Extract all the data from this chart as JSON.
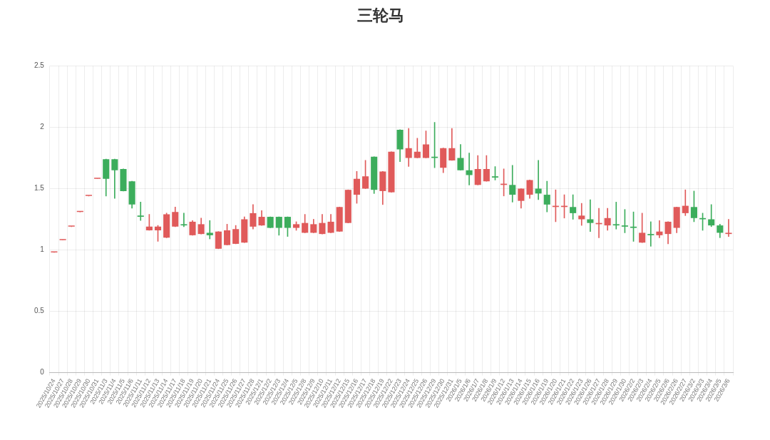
{
  "chart_data": {
    "type": "candlestick",
    "title": "三轮马",
    "categories": [
      "2025/10/24",
      "2025/10/27",
      "2025/10/28",
      "2025/10/29",
      "2025/10/30",
      "2025/10/31",
      "2025/11/3",
      "2025/11/4",
      "2025/11/5",
      "2025/11/6",
      "2025/11/11",
      "2025/11/12",
      "2025/11/13",
      "2025/11/14",
      "2025/11/17",
      "2025/11/18",
      "2025/11/19",
      "2025/11/20",
      "2025/11/21",
      "2025/11/24",
      "2025/11/25",
      "2025/11/26",
      "2025/11/27",
      "2025/11/28",
      "2025/12/1",
      "2025/12/2",
      "2025/12/3",
      "2025/12/4",
      "2025/12/5",
      "2025/12/8",
      "2025/12/9",
      "2025/12/10",
      "2025/12/11",
      "2025/12/12",
      "2025/12/15",
      "2025/12/16",
      "2025/12/17",
      "2025/12/18",
      "2025/12/19",
      "2025/12/22",
      "2025/12/23",
      "2025/12/24",
      "2025/12/25",
      "2025/12/26",
      "2025/12/29",
      "2025/12/30",
      "2025/12/31",
      "2026/1/5",
      "2026/1/6",
      "2026/1/7",
      "2026/1/8",
      "2026/1/9",
      "2026/1/12",
      "2026/1/13",
      "2026/1/14",
      "2026/1/15",
      "2026/1/16",
      "2026/1/19",
      "2026/1/20",
      "2026/1/21",
      "2026/1/22",
      "2026/1/23",
      "2026/1/26",
      "2026/1/27",
      "2026/1/28",
      "2026/1/29",
      "2026/1/30",
      "2026/2/2",
      "2026/2/3",
      "2026/2/4",
      "2026/2/5",
      "2026/2/6",
      "2026/2/26",
      "2026/2/27",
      "2026/3/2",
      "2026/3/3",
      "2026/3/4",
      "2026/3/5",
      "2026/3/6"
    ],
    "ohlc": [
      [
        0.98,
        0.98,
        0.98,
        0.98
      ],
      [
        1.08,
        1.08,
        1.08,
        1.08
      ],
      [
        1.19,
        1.19,
        1.19,
        1.19
      ],
      [
        1.31,
        1.31,
        1.31,
        1.31
      ],
      [
        1.44,
        1.44,
        1.44,
        1.44
      ],
      [
        1.58,
        1.58,
        1.58,
        1.58
      ],
      [
        1.74,
        1.74,
        1.44,
        1.58
      ],
      [
        1.74,
        1.74,
        1.42,
        1.65
      ],
      [
        1.66,
        1.66,
        1.48,
        1.48
      ],
      [
        1.56,
        1.56,
        1.34,
        1.37
      ],
      [
        1.28,
        1.39,
        1.24,
        1.27
      ],
      [
        1.16,
        1.29,
        1.16,
        1.19
      ],
      [
        1.16,
        1.2,
        1.07,
        1.19
      ],
      [
        1.1,
        1.3,
        1.1,
        1.29
      ],
      [
        1.19,
        1.35,
        1.19,
        1.31
      ],
      [
        1.21,
        1.3,
        1.19,
        1.2
      ],
      [
        1.12,
        1.24,
        1.12,
        1.23
      ],
      [
        1.13,
        1.26,
        1.13,
        1.21
      ],
      [
        1.14,
        1.24,
        1.09,
        1.12
      ],
      [
        1.01,
        1.15,
        1.01,
        1.15
      ],
      [
        1.04,
        1.21,
        1.04,
        1.16
      ],
      [
        1.05,
        1.2,
        1.05,
        1.17
      ],
      [
        1.06,
        1.27,
        1.06,
        1.25
      ],
      [
        1.19,
        1.37,
        1.17,
        1.3
      ],
      [
        1.2,
        1.32,
        1.2,
        1.27
      ],
      [
        1.27,
        1.27,
        1.18,
        1.18
      ],
      [
        1.27,
        1.27,
        1.12,
        1.18
      ],
      [
        1.27,
        1.27,
        1.11,
        1.18
      ],
      [
        1.18,
        1.23,
        1.16,
        1.21
      ],
      [
        1.14,
        1.29,
        1.14,
        1.22
      ],
      [
        1.14,
        1.25,
        1.14,
        1.21
      ],
      [
        1.13,
        1.29,
        1.13,
        1.22
      ],
      [
        1.14,
        1.29,
        1.14,
        1.23
      ],
      [
        1.15,
        1.35,
        1.15,
        1.35
      ],
      [
        1.22,
        1.49,
        1.22,
        1.49
      ],
      [
        1.45,
        1.64,
        1.38,
        1.58
      ],
      [
        1.5,
        1.73,
        1.5,
        1.6
      ],
      [
        1.76,
        1.76,
        1.46,
        1.49
      ],
      [
        1.48,
        1.64,
        1.37,
        1.64
      ],
      [
        1.47,
        1.8,
        1.47,
        1.8
      ],
      [
        1.98,
        1.98,
        1.72,
        1.82
      ],
      [
        1.75,
        1.99,
        1.68,
        1.83
      ],
      [
        1.75,
        1.91,
        1.75,
        1.8
      ],
      [
        1.75,
        1.97,
        1.75,
        1.86
      ],
      [
        1.76,
        2.04,
        1.67,
        1.75
      ],
      [
        1.67,
        1.83,
        1.63,
        1.83
      ],
      [
        1.73,
        1.99,
        1.73,
        1.83
      ],
      [
        1.75,
        1.86,
        1.65,
        1.65
      ],
      [
        1.65,
        1.79,
        1.53,
        1.61
      ],
      [
        1.53,
        1.77,
        1.53,
        1.66
      ],
      [
        1.56,
        1.77,
        1.56,
        1.66
      ],
      [
        1.6,
        1.68,
        1.57,
        1.59
      ],
      [
        1.53,
        1.66,
        1.44,
        1.54
      ],
      [
        1.53,
        1.69,
        1.39,
        1.45
      ],
      [
        1.4,
        1.5,
        1.34,
        1.5
      ],
      [
        1.45,
        1.57,
        1.42,
        1.57
      ],
      [
        1.5,
        1.73,
        1.41,
        1.46
      ],
      [
        1.45,
        1.56,
        1.31,
        1.37
      ],
      [
        1.35,
        1.49,
        1.23,
        1.36
      ],
      [
        1.35,
        1.45,
        1.26,
        1.36
      ],
      [
        1.35,
        1.45,
        1.25,
        1.3
      ],
      [
        1.25,
        1.38,
        1.2,
        1.28
      ],
      [
        1.25,
        1.41,
        1.15,
        1.22
      ],
      [
        1.21,
        1.34,
        1.1,
        1.22
      ],
      [
        1.2,
        1.34,
        1.16,
        1.26
      ],
      [
        1.21,
        1.39,
        1.17,
        1.2
      ],
      [
        1.2,
        1.33,
        1.14,
        1.19
      ],
      [
        1.19,
        1.31,
        1.07,
        1.18
      ],
      [
        1.06,
        1.3,
        1.06,
        1.14
      ],
      [
        1.13,
        1.23,
        1.03,
        1.12
      ],
      [
        1.12,
        1.24,
        1.1,
        1.15
      ],
      [
        1.13,
        1.23,
        1.05,
        1.23
      ],
      [
        1.18,
        1.35,
        1.14,
        1.35
      ],
      [
        1.3,
        1.49,
        1.28,
        1.36
      ],
      [
        1.35,
        1.48,
        1.23,
        1.26
      ],
      [
        1.26,
        1.3,
        1.16,
        1.25
      ],
      [
        1.25,
        1.37,
        1.19,
        1.2
      ],
      [
        1.2,
        1.21,
        1.1,
        1.14
      ],
      [
        1.13,
        1.25,
        1.11,
        1.14
      ]
    ],
    "colors": [
      "#e05a5a",
      "#e05a5a",
      "#e05a5a",
      "#e05a5a",
      "#e05a5a",
      "#e05a5a",
      "#3cad5c",
      "#3cad5c",
      "#3cad5c",
      "#3cad5c",
      "#3cad5c",
      "#e05a5a",
      "#e05a5a",
      "#e05a5a",
      "#e05a5a",
      "#3cad5c",
      "#e05a5a",
      "#e05a5a",
      "#3cad5c",
      "#e05a5a",
      "#e05a5a",
      "#e05a5a",
      "#e05a5a",
      "#e05a5a",
      "#e05a5a",
      "#3cad5c",
      "#3cad5c",
      "#3cad5c",
      "#e05a5a",
      "#e05a5a",
      "#e05a5a",
      "#e05a5a",
      "#e05a5a",
      "#e05a5a",
      "#e05a5a",
      "#e05a5a",
      "#e05a5a",
      "#3cad5c",
      "#e05a5a",
      "#e05a5a",
      "#3cad5c",
      "#e05a5a",
      "#e05a5a",
      "#e05a5a",
      "#3cad5c",
      "#e05a5a",
      "#e05a5a",
      "#3cad5c",
      "#3cad5c",
      "#e05a5a",
      "#e05a5a",
      "#3cad5c",
      "#e05a5a",
      "#3cad5c",
      "#e05a5a",
      "#e05a5a",
      "#3cad5c",
      "#3cad5c",
      "#e05a5a",
      "#e05a5a",
      "#3cad5c",
      "#e05a5a",
      "#3cad5c",
      "#e05a5a",
      "#e05a5a",
      "#3cad5c",
      "#3cad5c",
      "#3cad5c",
      "#e05a5a",
      "#3cad5c",
      "#e05a5a",
      "#e05a5a",
      "#e05a5a",
      "#e05a5a",
      "#3cad5c",
      "#3cad5c",
      "#3cad5c",
      "#3cad5c",
      "#e05a5a"
    ],
    "ylim": [
      0,
      2.5
    ],
    "yticks": [
      0,
      0.5,
      1,
      1.5,
      2,
      2.5
    ],
    "grid": true
  }
}
